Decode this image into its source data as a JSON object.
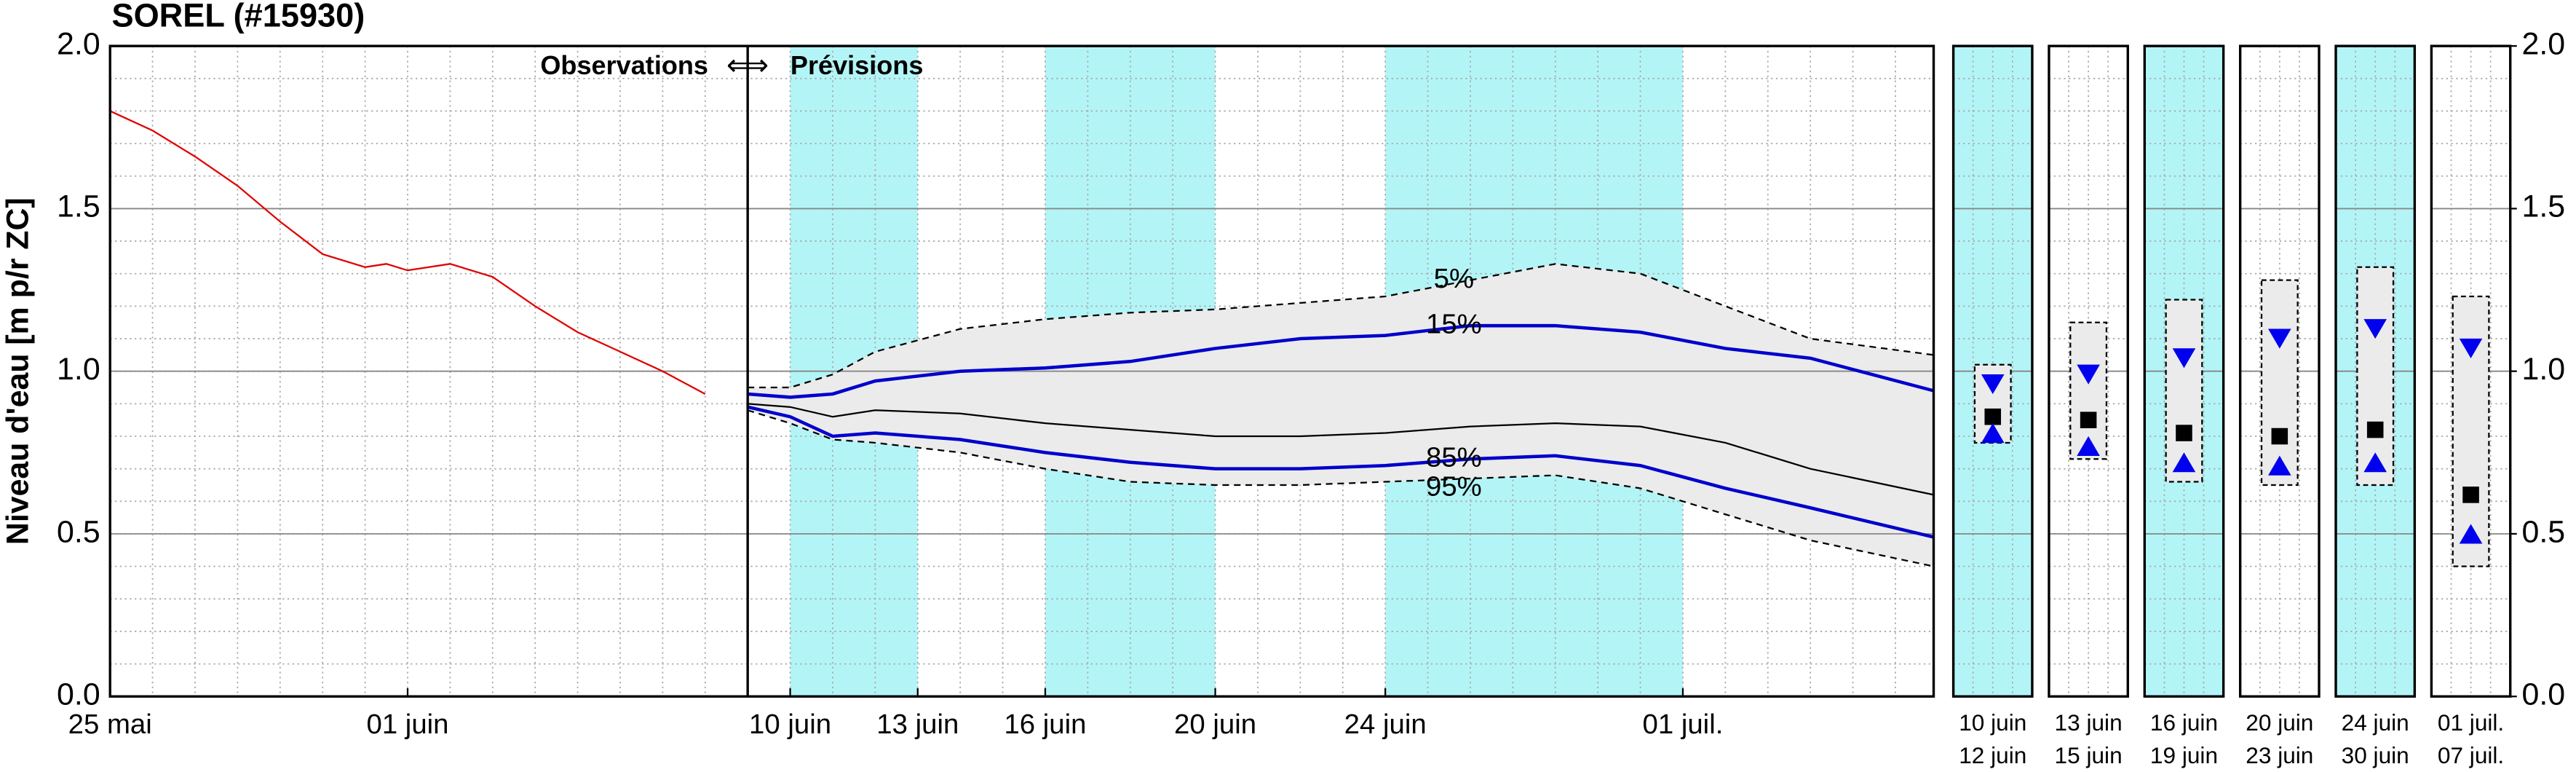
{
  "chart_data": [
    {
      "type": "line",
      "title": "SOREL (#15930)",
      "y_label": "Niveau d'eau [m p/r ZC]",
      "xlim": [
        -6,
        36.9
      ],
      "ylim": [
        0,
        2
      ],
      "xticks": [
        {
          "value": -6,
          "label": "25 mai"
        },
        {
          "value": 1,
          "label": "01 juin"
        },
        {
          "value": 10,
          "label": "10 juin"
        },
        {
          "value": 13,
          "label": "13 juin"
        },
        {
          "value": 16,
          "label": "16 juin"
        },
        {
          "value": 20,
          "label": "20 juin"
        },
        {
          "value": 24,
          "label": "24 juin"
        },
        {
          "value": 31,
          "label": "01 juil."
        }
      ],
      "yticks": [
        {
          "value": 0,
          "label": "0.0"
        },
        {
          "value": 0.5,
          "label": "0.5"
        },
        {
          "value": 1,
          "label": "1.0"
        },
        {
          "value": 1.5,
          "label": "1.5"
        },
        {
          "value": 2,
          "label": "2.0"
        }
      ],
      "grid": true,
      "minor_xstep": 1,
      "minor_ystep": 0.1,
      "shaded": [
        [
          10,
          13
        ],
        [
          16,
          20
        ],
        [
          24,
          31
        ]
      ],
      "shade_color": "#b3f5f7",
      "band_color": "#ebebeb",
      "divider": {
        "x": 9,
        "labels": [
          "Observations",
          "⟺",
          "Prévisions"
        ]
      },
      "series": [
        {
          "color": "#e00000",
          "style": "solid",
          "width": 1,
          "x": [
            -6,
            -5,
            -4,
            -3,
            -2,
            -1,
            0,
            0.5,
            1,
            2,
            3,
            4,
            5,
            6,
            7,
            8
          ],
          "values": [
            1.8,
            1.74,
            1.66,
            1.57,
            1.46,
            1.36,
            1.32,
            1.33,
            1.31,
            1.33,
            1.29,
            1.2,
            1.12,
            1.06,
            1,
            0.93
          ]
        },
        {
          "name": "5%",
          "color": "#000000",
          "style": "dashed",
          "width": 1,
          "x": [
            9,
            10,
            11,
            12,
            14,
            16,
            18,
            20,
            22,
            24,
            26,
            28,
            30,
            32,
            34,
            36.9
          ],
          "values": [
            0.95,
            0.95,
            0.99,
            1.06,
            1.13,
            1.16,
            1.18,
            1.19,
            1.21,
            1.23,
            1.28,
            1.33,
            1.3,
            1.2,
            1.1,
            1.05
          ]
        },
        {
          "name": "15%",
          "color": "#0000cc",
          "style": "solid",
          "width": 2,
          "x": [
            9,
            10,
            11,
            12,
            14,
            16,
            18,
            20,
            22,
            24,
            26,
            28,
            30,
            32,
            34,
            36.9
          ],
          "values": [
            0.93,
            0.92,
            0.93,
            0.97,
            1,
            1.01,
            1.03,
            1.07,
            1.1,
            1.11,
            1.14,
            1.14,
            1.12,
            1.07,
            1.04,
            0.94
          ]
        },
        {
          "color": "#000000",
          "style": "solid",
          "width": 1,
          "x": [
            9,
            10,
            11,
            12,
            14,
            16,
            18,
            20,
            22,
            24,
            26,
            28,
            30,
            32,
            34,
            36.9
          ],
          "values": [
            0.9,
            0.89,
            0.86,
            0.88,
            0.87,
            0.84,
            0.82,
            0.8,
            0.8,
            0.81,
            0.83,
            0.84,
            0.83,
            0.78,
            0.7,
            0.62
          ]
        },
        {
          "name": "85%",
          "color": "#0000cc",
          "style": "solid",
          "width": 2,
          "x": [
            9,
            10,
            11,
            12,
            14,
            16,
            18,
            20,
            22,
            24,
            26,
            28,
            30,
            32,
            34,
            36.9
          ],
          "values": [
            0.89,
            0.86,
            0.8,
            0.81,
            0.79,
            0.75,
            0.72,
            0.7,
            0.7,
            0.71,
            0.73,
            0.74,
            0.71,
            0.64,
            0.58,
            0.49
          ]
        },
        {
          "name": "95%",
          "color": "#000000",
          "style": "dashed",
          "width": 1,
          "x": [
            9,
            10,
            11,
            12,
            14,
            16,
            18,
            20,
            22,
            24,
            26,
            28,
            30,
            32,
            34,
            36.9
          ],
          "values": [
            0.88,
            0.84,
            0.79,
            0.78,
            0.75,
            0.7,
            0.66,
            0.65,
            0.65,
            0.66,
            0.67,
            0.68,
            0.64,
            0.56,
            0.48,
            0.4
          ]
        }
      ]
    },
    {
      "type": "range",
      "ylim": [
        0,
        2
      ],
      "yticks": [
        {
          "value": 0,
          "label": "0.0"
        },
        {
          "value": 0.5,
          "label": "0.5"
        },
        {
          "value": 1,
          "label": "1.0"
        },
        {
          "value": 1.5,
          "label": "1.5"
        },
        {
          "value": 2,
          "label": "2.0"
        }
      ],
      "categories": [
        [
          "10 juin",
          "12 juin"
        ],
        [
          "13 juin",
          "15 juin"
        ],
        [
          "16 juin",
          "19 juin"
        ],
        [
          "20 juin",
          "23 juin"
        ],
        [
          "24 juin",
          "30 juin"
        ],
        [
          "01 juil.",
          "07 juil."
        ]
      ],
      "shaded": [
        true,
        false,
        true,
        false,
        true,
        false
      ],
      "shade_color": "#b3f5f7",
      "box_color": "#ebebeb",
      "high": [
        1.02,
        1.15,
        1.22,
        1.28,
        1.32,
        1.23
      ],
      "low": [
        0.78,
        0.73,
        0.66,
        0.65,
        0.65,
        0.4
      ],
      "series": [
        {
          "marker": "triangle-down",
          "color": "#0000ee",
          "values": [
            0.96,
            0.99,
            1.04,
            1.1,
            1.13,
            1.07
          ]
        },
        {
          "marker": "square",
          "color": "#000000",
          "values": [
            0.86,
            0.85,
            0.81,
            0.8,
            0.82,
            0.62
          ]
        },
        {
          "marker": "triangle-up",
          "color": "#0000ee",
          "values": [
            0.81,
            0.77,
            0.72,
            0.71,
            0.72,
            0.5
          ]
        }
      ]
    }
  ]
}
